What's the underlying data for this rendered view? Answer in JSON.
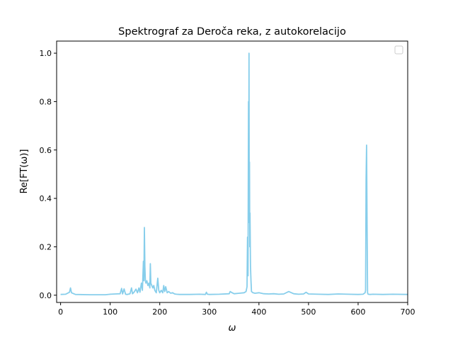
{
  "chart_data": {
    "type": "line",
    "title": "Spektrograf za Deroča reka, z autokorelacijo",
    "xlabel": "ω",
    "ylabel": "Re[FT(ω)]",
    "xlim": [
      -8,
      700
    ],
    "ylim": [
      -0.03,
      1.05
    ],
    "x_ticks": [
      0,
      100,
      200,
      300,
      400,
      500,
      600,
      700
    ],
    "y_ticks": [
      0.0,
      0.2,
      0.4,
      0.6,
      0.8,
      1.0
    ],
    "x_tick_labels": [
      "0",
      "100",
      "200",
      "300",
      "400",
      "500",
      "600",
      "700"
    ],
    "y_tick_labels": [
      "0.0",
      "0.2",
      "0.4",
      "0.6",
      "0.8",
      "1.0"
    ],
    "grid": false,
    "legend": {
      "placement": "top-right",
      "entries": []
    },
    "series": [
      {
        "color": "#87ceeb",
        "x": [
          0,
          10,
          18,
          20,
          22,
          30,
          60,
          90,
          100,
          110,
          120,
          123,
          125,
          128,
          131,
          134,
          140,
          143,
          145,
          148,
          152,
          155,
          158,
          160,
          163,
          165,
          167,
          168,
          169,
          170,
          171,
          172,
          174,
          176,
          178,
          180,
          181,
          182,
          184,
          186,
          188,
          190,
          193,
          196,
          198,
          200,
          203,
          206,
          208,
          210,
          212,
          215,
          218,
          222,
          226,
          230,
          234,
          240,
          260,
          280,
          292,
          294,
          296,
          300,
          320,
          340,
          342,
          346,
          350,
          360,
          370,
          374,
          376,
          377,
          378,
          379,
          379.5,
          380,
          380.5,
          381,
          381.5,
          382,
          383,
          384,
          385,
          388,
          392,
          400,
          410,
          420,
          430,
          440,
          450,
          460,
          470,
          480,
          490,
          495,
          500,
          520,
          540,
          560,
          580,
          600,
          610,
          614,
          615,
          616,
          617,
          618,
          619,
          620,
          624,
          630,
          650,
          670,
          700
        ],
        "y": [
          0.003,
          0.004,
          0.012,
          0.03,
          0.01,
          0.003,
          0.002,
          0.002,
          0.004,
          0.005,
          0.006,
          0.028,
          0.005,
          0.026,
          0.004,
          0.003,
          0.006,
          0.03,
          0.006,
          0.012,
          0.025,
          0.01,
          0.03,
          0.012,
          0.05,
          0.02,
          0.14,
          0.06,
          0.28,
          0.12,
          0.06,
          0.05,
          0.06,
          0.04,
          0.05,
          0.03,
          0.13,
          0.05,
          0.04,
          0.03,
          0.04,
          0.02,
          0.01,
          0.07,
          0.02,
          0.01,
          0.02,
          0.01,
          0.04,
          0.015,
          0.035,
          0.01,
          0.015,
          0.008,
          0.01,
          0.005,
          0.004,
          0.003,
          0.003,
          0.004,
          0.003,
          0.012,
          0.004,
          0.003,
          0.004,
          0.006,
          0.015,
          0.01,
          0.006,
          0.008,
          0.01,
          0.015,
          0.035,
          0.24,
          0.08,
          0.8,
          0.4,
          1.0,
          0.3,
          0.55,
          0.2,
          0.34,
          0.12,
          0.06,
          0.015,
          0.01,
          0.008,
          0.01,
          0.006,
          0.005,
          0.006,
          0.004,
          0.005,
          0.015,
          0.006,
          0.004,
          0.005,
          0.012,
          0.005,
          0.004,
          0.003,
          0.005,
          0.004,
          0.003,
          0.004,
          0.01,
          0.02,
          0.48,
          0.62,
          0.3,
          0.01,
          0.004,
          0.003,
          0.004,
          0.003,
          0.004,
          0.003
        ]
      }
    ]
  }
}
